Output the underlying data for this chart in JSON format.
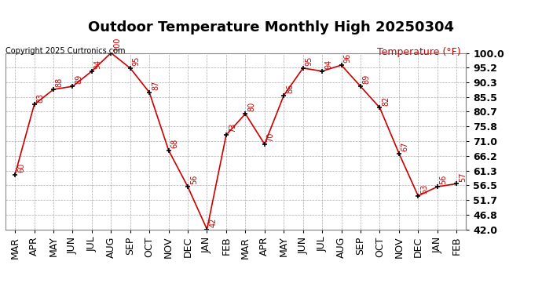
{
  "title": "Outdoor Temperature Monthly High 20250304",
  "copyright": "Copyright 2025 Curtronics.com",
  "legend_label": "Temperature (°F)",
  "x_labels": [
    "MAR",
    "APR",
    "MAY",
    "JUN",
    "JUL",
    "AUG",
    "SEP",
    "OCT",
    "NOV",
    "DEC",
    "JAN",
    "FEB",
    "MAR",
    "APR",
    "MAY",
    "JUN",
    "JUL",
    "AUG",
    "SEP",
    "OCT",
    "NOV",
    "DEC",
    "JAN",
    "FEB"
  ],
  "y_values": [
    60,
    83,
    88,
    89,
    94,
    100,
    95,
    87,
    68,
    56,
    42,
    73,
    80,
    70,
    86,
    95,
    94,
    96,
    89,
    82,
    67,
    53,
    56,
    57
  ],
  "y_min": 42.0,
  "y_max": 100.0,
  "y_ticks": [
    42.0,
    46.8,
    51.7,
    56.5,
    61.3,
    66.2,
    71.0,
    75.8,
    80.7,
    85.5,
    90.3,
    95.2,
    100.0
  ],
  "line_color": "#cc0000",
  "marker_color": "#000000",
  "title_fontsize": 13,
  "copyright_fontsize": 7,
  "legend_fontsize": 9,
  "tick_fontsize": 9,
  "annotation_fontsize": 7,
  "bg_color": "#ffffff",
  "grid_color": "#aaaaaa"
}
